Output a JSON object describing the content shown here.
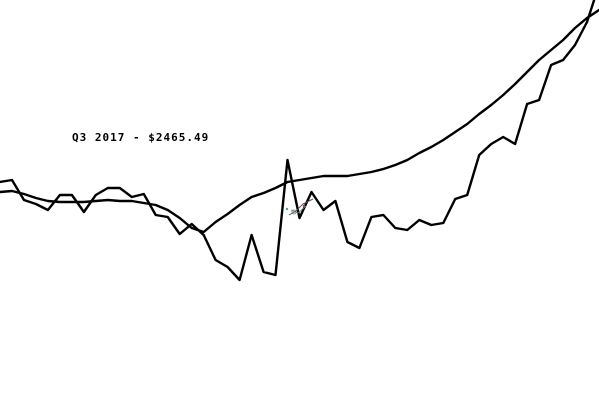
{
  "chart_data": {
    "type": "line",
    "title": "",
    "xlabel": "",
    "ylabel": "",
    "grid": false,
    "legend": "none",
    "annotation": "Q3 2017 - $2465.49",
    "x": [
      0,
      1,
      2,
      3,
      4,
      5,
      6,
      7,
      8,
      9,
      10,
      11,
      12,
      13,
      14,
      15,
      16,
      17,
      18,
      19,
      20,
      21,
      22,
      23,
      24,
      25,
      26,
      27,
      28,
      29,
      30,
      31,
      32,
      33,
      34,
      35,
      36,
      37,
      38,
      39,
      40,
      41,
      42,
      43,
      44,
      45,
      46,
      47,
      48,
      49,
      50
    ],
    "ylim": [
      0,
      400
    ],
    "series": [
      {
        "values": [
          218,
          220,
          200,
          196,
          190,
          205,
          205,
          188,
          205,
          212,
          212,
          203,
          206,
          185,
          183,
          166,
          176,
          165,
          140,
          133,
          120,
          165,
          128,
          125,
          240,
          182,
          208,
          190,
          199,
          158,
          152,
          183,
          185,
          172,
          170,
          180,
          175,
          177,
          201,
          205,
          245,
          256,
          263,
          256,
          296,
          300,
          335,
          340,
          355,
          378,
          415
        ],
        "color": "#000000"
      },
      {
        "values": [
          208,
          209,
          206,
          202,
          199,
          198,
          198,
          198,
          199,
          200,
          199,
          199,
          197,
          195,
          190,
          182,
          172,
          168,
          178,
          186,
          195,
          203,
          207,
          212,
          218,
          220,
          222,
          224,
          224,
          224,
          226,
          228,
          231,
          235,
          240,
          247,
          253,
          260,
          268,
          276,
          286,
          295,
          305,
          316,
          328,
          340,
          350,
          360,
          372,
          382,
          390
        ],
        "color": "#000000"
      }
    ]
  }
}
